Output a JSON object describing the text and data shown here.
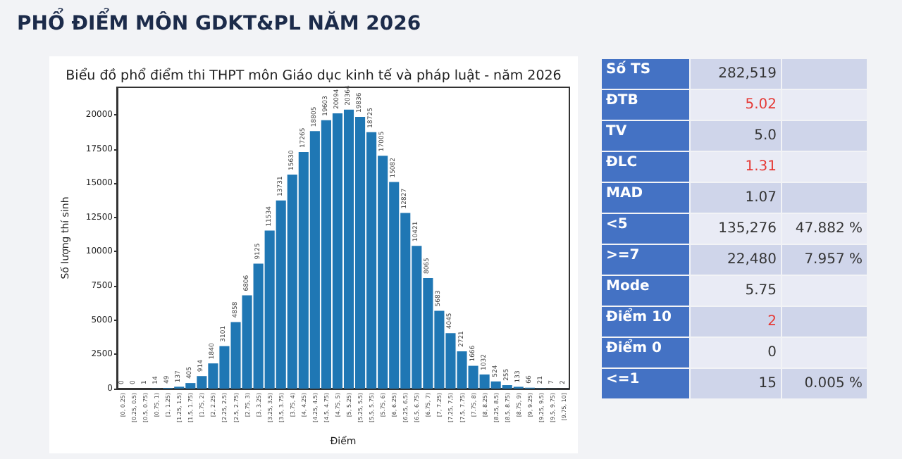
{
  "chart_data": [
    {
      "type": "bar",
      "title": "PHỔ ĐIỂM MÔN GDKT&PL NĂM 2026",
      "subtitle": "Biểu đồ phổ điểm thi THPT môn Giáo dục kinh tế và pháp luật - năm 2026",
      "xlabel": "Điểm",
      "ylabel": "Số lượng thí sinh",
      "categories": [
        "[0, 0.25)",
        "[0.25, 0.5)",
        "[0.5, 0.75)",
        "[0.75, 1)",
        "[1, 1.25)",
        "[1.25, 1.5)",
        "[1.5, 1.75)",
        "[1.75, 2)",
        "[2, 2.25)",
        "[2.25, 2.5)",
        "[2.5, 2.75)",
        "[2.75, 3)",
        "[3, 3.25)",
        "[3.25, 3.5)",
        "[3.5, 3.75)",
        "[3.75, 4)",
        "[4, 4.25)",
        "[4.25, 4.5)",
        "[4.5, 4.75)",
        "[4.75, 5)",
        "[5, 5.25)",
        "[5.25, 5.5)",
        "[5.5, 5.75)",
        "[5.75, 6)",
        "[6, 6.25)",
        "[6.25, 6.5)",
        "[6.5, 6.75)",
        "[6.75, 7)",
        "[7, 7.25)",
        "[7.25, 7.5)",
        "[7.5, 7.75)",
        "[7.75, 8)",
        "[8, 8.25)",
        "[8.25, 8.5)",
        "[8.5, 8.75)",
        "[8.75, 9)",
        "[9, 9.25)",
        "[9.25, 9.5)",
        "[9.5, 9.75)",
        "[9.75, 10]"
      ],
      "values": [
        0,
        0,
        1,
        14,
        49,
        137,
        405,
        914,
        1840,
        3101,
        4858,
        6806,
        9125,
        11534,
        13731,
        15630,
        17265,
        18805,
        19603,
        20094,
        20364,
        19836,
        18725,
        17005,
        15082,
        12827,
        10421,
        8065,
        5683,
        4045,
        2721,
        1666,
        1032,
        524,
        255,
        133,
        66,
        21,
        7,
        2
      ],
      "color": "#1f77b4",
      "data_labels": true,
      "grid": false,
      "ylim": [
        0,
        22000
      ],
      "yticks": [
        0,
        2500,
        5000,
        7500,
        10000,
        12500,
        15000,
        17500,
        20000
      ]
    },
    {
      "type": "other",
      "y_categories": [
        "Số TS",
        "ĐTB",
        "TV",
        "ĐLC",
        "MAD",
        "<5",
        ">=7",
        "Mode",
        "Điểm 10",
        "Điểm 0",
        "<=1"
      ],
      "cell_labels": [
        [
          "282,519",
          null
        ],
        [
          "5.02",
          null
        ],
        [
          "5.0",
          null
        ],
        [
          "1.31",
          null
        ],
        [
          "1.07",
          null
        ],
        [
          "135,276",
          "47.882 %"
        ],
        [
          "22,480",
          "7.957 %"
        ],
        [
          "5.75",
          null
        ],
        [
          "2",
          null
        ],
        [
          "0",
          null
        ],
        [
          "15",
          "0.005 %"
        ]
      ],
      "colors": [
        "#333333",
        "#e53935",
        "#333333",
        "#e53935",
        "#333333",
        "#333333",
        "#333333",
        "#333333",
        "#e53935",
        "#333333",
        "#333333"
      ]
    }
  ]
}
